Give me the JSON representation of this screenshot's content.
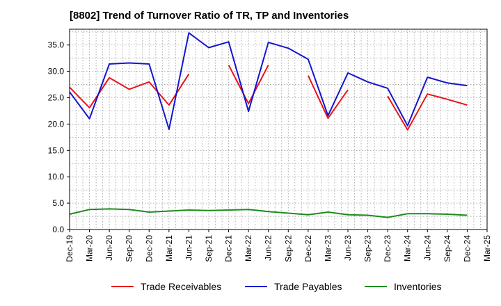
{
  "chart_data": {
    "type": "line",
    "title": "[8802]  Trend of Turnover Ratio of TR, TP and Inventories",
    "xlabel": "",
    "ylabel": "",
    "ylim": [
      0,
      38
    ],
    "yticks": [
      "0.0",
      "5.0",
      "10.0",
      "15.0",
      "20.0",
      "25.0",
      "30.0",
      "35.0"
    ],
    "x_tick_labels": [
      "Dec-19",
      "Mar-20",
      "Jun-20",
      "Sep-20",
      "Dec-20",
      "Mar-21",
      "Jun-21",
      "Sep-21",
      "Dec-21",
      "Mar-22",
      "Jun-22",
      "Sep-22",
      "Dec-22",
      "Mar-23",
      "Jun-23",
      "Sep-23",
      "Dec-23",
      "Mar-24",
      "Jun-24",
      "Sep-24",
      "Dec-24",
      "Mar-25"
    ],
    "grid": true,
    "legend_position": "bottom",
    "x": [
      "Dec-19",
      "Mar-20",
      "Jun-20",
      "Sep-20",
      "Dec-20",
      "Mar-21",
      "Jun-21",
      "Sep-21",
      "Dec-21",
      "Mar-22",
      "Jun-22",
      "Sep-22",
      "Dec-22",
      "Mar-23",
      "Jun-23",
      "Sep-23",
      "Dec-23",
      "Mar-24",
      "Jun-24",
      "Sep-24",
      "Dec-24"
    ],
    "series": [
      {
        "name": "Trade Receivables",
        "color": "#e8141c",
        "values": [
          27.0,
          23.1,
          28.8,
          26.6,
          28.0,
          23.6,
          29.5,
          null,
          31.2,
          23.9,
          31.2,
          null,
          29.2,
          21.1,
          26.5,
          null,
          25.3,
          18.9,
          25.7,
          24.7,
          23.6
        ]
      },
      {
        "name": "Trade Payables",
        "color": "#1414d2",
        "values": [
          26.1,
          21.0,
          31.4,
          31.6,
          31.4,
          19.0,
          37.3,
          34.5,
          35.6,
          22.4,
          35.5,
          34.4,
          32.3,
          21.6,
          29.7,
          28.0,
          26.8,
          19.7,
          28.9,
          27.8,
          27.3
        ]
      },
      {
        "name": "Inventories",
        "color": "#1e8c1e",
        "values": [
          2.9,
          3.8,
          3.9,
          3.8,
          3.3,
          3.5,
          3.7,
          3.6,
          3.7,
          3.8,
          3.4,
          3.1,
          2.8,
          3.3,
          2.8,
          2.7,
          2.3,
          3.0,
          3.0,
          2.9,
          2.7
        ]
      }
    ]
  }
}
